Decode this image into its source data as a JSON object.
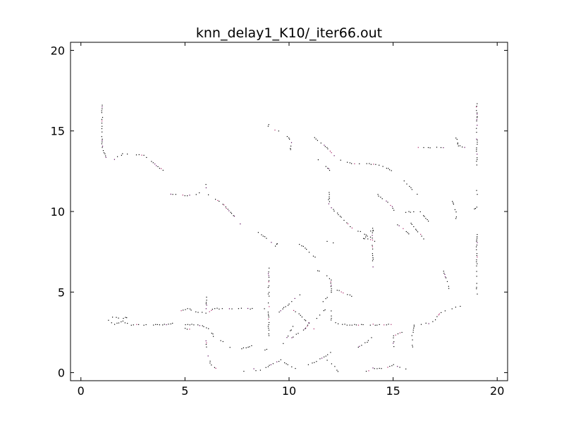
{
  "chart_data": {
    "type": "scatter",
    "title": "knn_delay1_K10/_iter66.out",
    "xlabel": "",
    "ylabel": "",
    "xlim": [
      -0.5,
      20.5
    ],
    "ylim": [
      -0.5,
      20.5
    ],
    "xticks": [
      0,
      5,
      10,
      15,
      20
    ],
    "yticks": [
      0,
      5,
      10,
      15,
      20
    ],
    "xtick_labels": [
      "0",
      "5",
      "10",
      "15",
      "20"
    ],
    "ytick_labels": [
      "0",
      "5",
      "10",
      "15",
      "20"
    ],
    "grid": false,
    "marker_colors": [
      "#000000",
      "#550055",
      "#aa2266"
    ],
    "paths": [
      [
        [
          1.0,
          16.6
        ],
        [
          1.0,
          14.0
        ],
        [
          1.2,
          13.4
        ],
        [
          1.5,
          13.2
        ],
        [
          2.0,
          13.6
        ],
        [
          3.0,
          13.5
        ],
        [
          3.6,
          12.9
        ],
        [
          4.0,
          12.5
        ]
      ],
      [
        [
          4.3,
          11.1
        ],
        [
          5.0,
          11.0
        ],
        [
          5.6,
          11.1
        ],
        [
          6.0,
          11.5
        ],
        [
          6.0,
          11.8
        ]
      ],
      [
        [
          6.0,
          11.1
        ],
        [
          6.8,
          10.5
        ],
        [
          7.3,
          9.8
        ],
        [
          7.7,
          9.2
        ]
      ],
      [
        [
          8.5,
          8.7
        ],
        [
          9.0,
          8.3
        ],
        [
          9.3,
          7.9
        ],
        [
          9.5,
          8.1
        ]
      ],
      [
        [
          9.0,
          15.5
        ],
        [
          9.0,
          15.2
        ],
        [
          9.5,
          15.0
        ],
        [
          9.9,
          14.7
        ],
        [
          10.1,
          14.3
        ],
        [
          10.0,
          13.5
        ]
      ],
      [
        [
          11.2,
          14.6
        ],
        [
          11.8,
          14.0
        ],
        [
          12.2,
          13.4
        ],
        [
          12.6,
          13.1
        ],
        [
          13.0,
          13.0
        ],
        [
          13.7,
          13.0
        ],
        [
          14.4,
          12.9
        ],
        [
          15.0,
          12.5
        ]
      ],
      [
        [
          11.0,
          13.6
        ],
        [
          11.7,
          12.9
        ],
        [
          12.0,
          12.5
        ]
      ],
      [
        [
          11.9,
          11.3
        ],
        [
          11.9,
          10.4
        ],
        [
          12.3,
          9.9
        ],
        [
          12.7,
          9.4
        ],
        [
          13.0,
          9.0
        ],
        [
          13.5,
          8.7
        ],
        [
          14.0,
          8.4
        ]
      ],
      [
        [
          14.0,
          11.5
        ],
        [
          14.3,
          11.0
        ],
        [
          14.8,
          10.5
        ],
        [
          15.1,
          10.0
        ]
      ],
      [
        [
          15.5,
          11.9
        ],
        [
          15.9,
          11.4
        ],
        [
          16.2,
          11.0
        ]
      ],
      [
        [
          15.6,
          10.0
        ],
        [
          16.3,
          10.0
        ],
        [
          16.6,
          9.5
        ],
        [
          16.8,
          9.2
        ]
      ],
      [
        [
          18.0,
          14.7
        ],
        [
          18.1,
          14.1
        ],
        [
          18.5,
          14.0
        ]
      ],
      [
        [
          16.2,
          14.0
        ],
        [
          17.0,
          14.0
        ],
        [
          17.5,
          14.0
        ]
      ],
      [
        [
          19.0,
          16.7
        ],
        [
          19.0,
          14.0
        ],
        [
          19.0,
          12.5
        ]
      ],
      [
        [
          19.0,
          11.3
        ],
        [
          19.0,
          10.3
        ],
        [
          18.8,
          10.1
        ]
      ],
      [
        [
          17.8,
          10.8
        ],
        [
          18.0,
          10.0
        ],
        [
          18.0,
          9.5
        ]
      ],
      [
        [
          19.0,
          8.6
        ],
        [
          19.0,
          7.0
        ],
        [
          19.0,
          6.0
        ],
        [
          19.0,
          5.0
        ],
        [
          19.0,
          4.4
        ],
        [
          18.8,
          4.2
        ]
      ],
      [
        [
          14.0,
          9.0
        ],
        [
          14.0,
          7.5
        ],
        [
          14.0,
          6.5
        ]
      ],
      [
        [
          13.5,
          8.2
        ],
        [
          13.8,
          8.6
        ],
        [
          14.1,
          9.2
        ]
      ],
      [
        [
          13.2,
          8.4
        ],
        [
          13.9,
          8.3
        ],
        [
          14.2,
          8.1
        ]
      ],
      [
        [
          15.7,
          9.6
        ],
        [
          16.0,
          9.0
        ],
        [
          16.3,
          8.6
        ],
        [
          16.5,
          8.2
        ]
      ],
      [
        [
          15.2,
          9.2
        ],
        [
          15.6,
          8.8
        ],
        [
          15.9,
          8.5
        ]
      ],
      [
        [
          11.5,
          8.5
        ],
        [
          11.8,
          8.2
        ],
        [
          12.2,
          8.0
        ]
      ],
      [
        [
          10.5,
          8.0
        ],
        [
          10.9,
          7.6
        ],
        [
          11.3,
          7.1
        ]
      ],
      [
        [
          11.2,
          6.5
        ],
        [
          11.7,
          6.1
        ],
        [
          12.0,
          5.8
        ],
        [
          12.0,
          5.0
        ],
        [
          11.7,
          4.5
        ],
        [
          11.5,
          4.4
        ]
      ],
      [
        [
          12.2,
          5.2
        ],
        [
          12.6,
          5.0
        ],
        [
          13.1,
          4.7
        ]
      ],
      [
        [
          12.0,
          4.0
        ],
        [
          12.0,
          3.3
        ],
        [
          12.4,
          3.0
        ],
        [
          13.0,
          3.0
        ],
        [
          14.0,
          3.0
        ],
        [
          15.0,
          3.0
        ]
      ],
      [
        [
          16.0,
          3.0
        ],
        [
          16.8,
          3.1
        ],
        [
          17.0,
          3.3
        ],
        [
          17.2,
          3.7
        ],
        [
          17.8,
          4.0
        ],
        [
          18.4,
          4.2
        ]
      ],
      [
        [
          17.4,
          6.3
        ],
        [
          17.6,
          5.7
        ],
        [
          17.7,
          5.0
        ]
      ],
      [
        [
          9.0,
          6.6
        ],
        [
          9.0,
          5.0
        ],
        [
          9.0,
          4.0
        ],
        [
          9.0,
          3.0
        ],
        [
          9.0,
          2.3
        ],
        [
          8.7,
          2.0
        ]
      ],
      [
        [
          9.5,
          3.8
        ],
        [
          10.0,
          4.3
        ],
        [
          10.3,
          4.7
        ],
        [
          10.6,
          4.9
        ]
      ],
      [
        [
          10.2,
          3.9
        ],
        [
          10.6,
          3.5
        ],
        [
          11.0,
          3.0
        ],
        [
          11.3,
          2.6
        ]
      ],
      [
        [
          10.1,
          2.2
        ],
        [
          10.5,
          2.5
        ],
        [
          10.8,
          2.8
        ],
        [
          11.0,
          3.2
        ]
      ],
      [
        [
          9.7,
          1.8
        ],
        [
          10.0,
          2.5
        ],
        [
          10.2,
          3.0
        ]
      ],
      [
        [
          11.3,
          3.4
        ],
        [
          11.5,
          3.7
        ],
        [
          11.8,
          4.0
        ]
      ],
      [
        [
          1.3,
          3.3
        ],
        [
          1.5,
          3.0
        ],
        [
          2.0,
          3.2
        ],
        [
          2.4,
          3.0
        ],
        [
          3.0,
          3.0
        ],
        [
          4.0,
          3.0
        ],
        [
          4.5,
          3.1
        ]
      ],
      [
        [
          1.4,
          3.5
        ],
        [
          2.0,
          3.4
        ],
        [
          2.3,
          3.5
        ]
      ],
      [
        [
          4.8,
          3.9
        ],
        [
          5.2,
          4.0
        ],
        [
          5.5,
          3.8
        ],
        [
          6.0,
          3.7
        ],
        [
          6.4,
          4.0
        ]
      ],
      [
        [
          6.4,
          4.0
        ],
        [
          7.0,
          4.0
        ],
        [
          8.0,
          4.0
        ],
        [
          9.0,
          4.0
        ]
      ],
      [
        [
          6.0,
          4.7
        ],
        [
          6.0,
          4.2
        ],
        [
          6.0,
          3.8
        ]
      ],
      [
        [
          5.0,
          3.0
        ],
        [
          5.5,
          3.0
        ],
        [
          5.9,
          2.9
        ],
        [
          6.2,
          2.7
        ],
        [
          6.4,
          2.2
        ]
      ],
      [
        [
          5.0,
          2.8
        ],
        [
          5.2,
          2.7
        ],
        [
          5.4,
          2.6
        ]
      ],
      [
        [
          6.0,
          2.0
        ],
        [
          6.0,
          1.4
        ],
        [
          6.2,
          0.6
        ],
        [
          6.5,
          0.2
        ]
      ],
      [
        [
          6.7,
          2.0
        ],
        [
          7.0,
          1.8
        ],
        [
          7.2,
          1.5
        ]
      ],
      [
        [
          7.6,
          1.5
        ],
        [
          8.0,
          1.6
        ],
        [
          8.4,
          1.8
        ]
      ],
      [
        [
          7.8,
          0.1
        ],
        [
          8.2,
          0.3
        ],
        [
          8.5,
          0.1
        ],
        [
          8.8,
          0.3
        ],
        [
          9.2,
          0.6
        ],
        [
          9.6,
          0.8
        ],
        [
          10.1,
          0.4
        ],
        [
          10.4,
          0.2
        ]
      ],
      [
        [
          8.6,
          1.2
        ],
        [
          8.9,
          1.5
        ],
        [
          9.2,
          1.8
        ]
      ],
      [
        [
          10.9,
          0.5
        ],
        [
          11.4,
          0.8
        ],
        [
          11.9,
          1.2
        ],
        [
          12.1,
          1.5
        ]
      ],
      [
        [
          11.8,
          0.8
        ],
        [
          12.1,
          0.5
        ],
        [
          12.4,
          0.0
        ]
      ],
      [
        [
          13.3,
          1.6
        ],
        [
          13.8,
          2.0
        ],
        [
          14.0,
          2.3
        ]
      ],
      [
        [
          13.7,
          0.1
        ],
        [
          14.0,
          0.3
        ],
        [
          14.5,
          0.3
        ],
        [
          15.0,
          0.5
        ],
        [
          15.5,
          0.3
        ],
        [
          15.8,
          0.1
        ]
      ],
      [
        [
          15.0,
          1.5
        ],
        [
          15.0,
          2.3
        ],
        [
          15.5,
          2.6
        ]
      ],
      [
        [
          16.0,
          3.0
        ],
        [
          15.9,
          2.3
        ],
        [
          15.9,
          1.5
        ]
      ]
    ]
  }
}
